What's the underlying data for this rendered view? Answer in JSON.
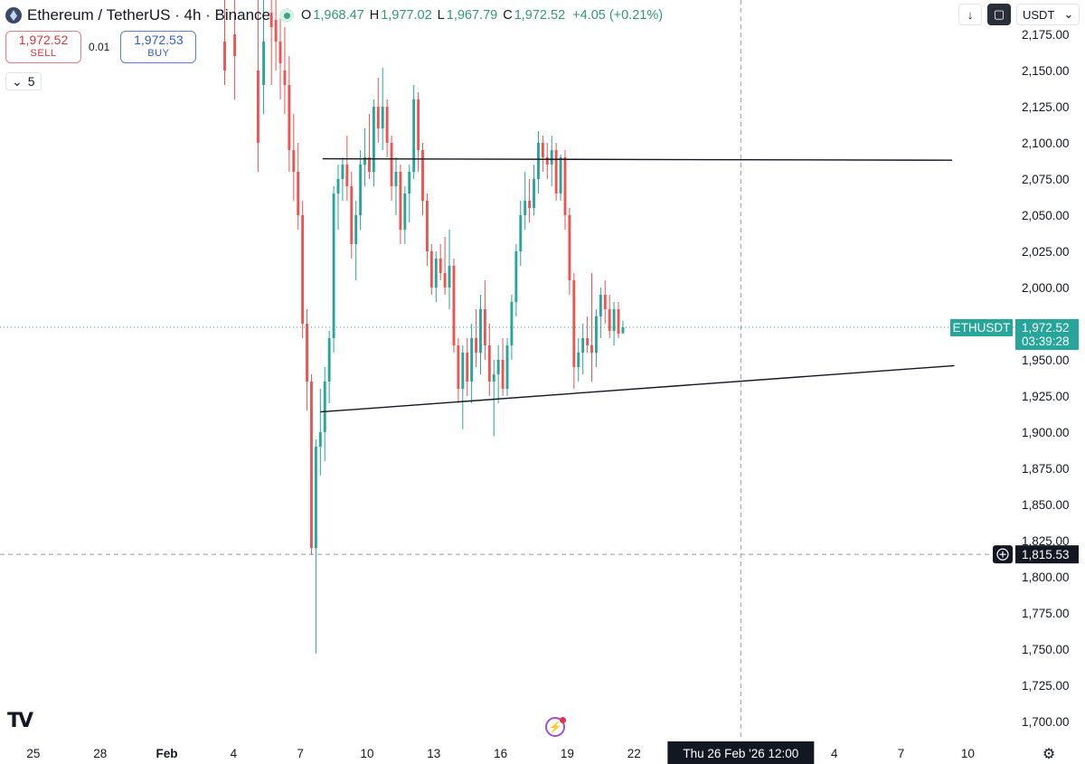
{
  "header": {
    "symbol": "Ethereum / TetherUS · 4h · Binance",
    "ohlc": [
      {
        "key": "O",
        "value": "1,968.47"
      },
      {
        "key": "H",
        "value": "1,977.02"
      },
      {
        "key": "L",
        "value": "1,967.79"
      },
      {
        "key": "C",
        "value": "1,972.52"
      }
    ],
    "change": "+4.05 (+0.21%)"
  },
  "trade": {
    "sell_price": "1,972.52",
    "sell_label": "SELL",
    "spread": "0.01",
    "buy_price": "1,972.53",
    "buy_label": "BUY"
  },
  "indicator_toggle": {
    "count": "5"
  },
  "toolbar": {
    "currency": "USDT"
  },
  "price_labels": {
    "symbol_tag": "ETHUSDT",
    "current_price": "1,972.52",
    "countdown": "03:39:28",
    "crosshair_price": "1,815.53",
    "crosshair_time": "Thu 26 Feb '26   12:00"
  },
  "colors": {
    "up": "#26a69a",
    "down": "#ef5350",
    "axis_text": "#131722",
    "price_tag": "#26a69a",
    "dark_tag": "#131722"
  },
  "icons": {
    "logo": "eth-logo",
    "status": "market-open-dot",
    "download": "download-icon",
    "fullscreen": "fullscreen-icon",
    "collapse": "chevron-down-icon",
    "brand": "tradingview-logo",
    "alert": "lightning-icon",
    "crosshair_add": "plus-circle-icon",
    "settings": "gear-icon"
  },
  "chart_data": {
    "type": "candlestick",
    "title": "Ethereum / TetherUS · 4h · Binance",
    "xlabel": "",
    "ylabel": "",
    "ylim": [
      1690,
      2180
    ],
    "y_ticks": [
      "2,175.00",
      "2,150.00",
      "2,125.00",
      "2,100.00",
      "2,075.00",
      "2,050.00",
      "2,025.00",
      "2,000.00",
      "1,975.00",
      "1,950.00",
      "1,925.00",
      "1,900.00",
      "1,875.00",
      "1,850.00",
      "1,825.00",
      "1,800.00",
      "1,775.00",
      "1,750.00",
      "1,725.00",
      "1,700.00"
    ],
    "x_ticks": [
      "25",
      "28",
      "Feb",
      "4",
      "7",
      "10",
      "13",
      "16",
      "19",
      "22",
      "4",
      "7",
      "10"
    ],
    "x_range_days": [
      -7.8,
      37.8
    ],
    "candle_period_days": 0.1666667,
    "candles": [
      {
        "t": 2.3,
        "o": 2170,
        "h": 2210,
        "l": 2140,
        "c": 2150
      },
      {
        "t": 2.75,
        "o": 2175,
        "h": 2230,
        "l": 2130,
        "c": 2160
      },
      {
        "t": 3.8,
        "o": 2150,
        "h": 2200,
        "l": 2080,
        "c": 2100
      },
      {
        "t": 4.05,
        "o": 2140,
        "h": 2200,
        "l": 2120,
        "c": 2170
      },
      {
        "t": 4.4,
        "o": 2190,
        "h": 2215,
        "l": 2140,
        "c": 2180
      },
      {
        "t": 4.6,
        "o": 2185,
        "h": 2210,
        "l": 2150,
        "c": 2170
      },
      {
        "t": 4.8,
        "o": 2170,
        "h": 2190,
        "l": 2130,
        "c": 2155
      },
      {
        "t": 5.0,
        "o": 2150,
        "h": 2180,
        "l": 2120,
        "c": 2140
      },
      {
        "t": 5.2,
        "o": 2140,
        "h": 2160,
        "l": 2080,
        "c": 2095
      },
      {
        "t": 5.4,
        "o": 2095,
        "h": 2120,
        "l": 2060,
        "c": 2080
      },
      {
        "t": 5.6,
        "o": 2080,
        "h": 2100,
        "l": 2040,
        "c": 2050
      },
      {
        "t": 5.8,
        "o": 2050,
        "h": 2060,
        "l": 1965,
        "c": 1975
      },
      {
        "t": 6.0,
        "o": 1975,
        "h": 1985,
        "l": 1915,
        "c": 1935
      },
      {
        "t": 6.2,
        "o": 1935,
        "h": 1940,
        "l": 1815,
        "c": 1820
      },
      {
        "t": 6.4,
        "o": 1820,
        "h": 1895,
        "l": 1747,
        "c": 1890
      },
      {
        "t": 6.6,
        "o": 1890,
        "h": 1930,
        "l": 1870,
        "c": 1900
      },
      {
        "t": 6.8,
        "o": 1900,
        "h": 1945,
        "l": 1880,
        "c": 1935
      },
      {
        "t": 7.0,
        "o": 1935,
        "h": 1970,
        "l": 1920,
        "c": 1965
      },
      {
        "t": 7.2,
        "o": 1965,
        "h": 2070,
        "l": 1955,
        "c": 2065
      },
      {
        "t": 7.4,
        "o": 2065,
        "h": 2085,
        "l": 2040,
        "c": 2075
      },
      {
        "t": 7.6,
        "o": 2075,
        "h": 2090,
        "l": 2060,
        "c": 2085
      },
      {
        "t": 7.8,
        "o": 2085,
        "h": 2105,
        "l": 2060,
        "c": 2070
      },
      {
        "t": 8.0,
        "o": 2070,
        "h": 2080,
        "l": 2020,
        "c": 2030
      },
      {
        "t": 8.2,
        "o": 2030,
        "h": 2060,
        "l": 2005,
        "c": 2050
      },
      {
        "t": 8.4,
        "o": 2050,
        "h": 2095,
        "l": 2040,
        "c": 2085
      },
      {
        "t": 8.6,
        "o": 2085,
        "h": 2110,
        "l": 2070,
        "c": 2090
      },
      {
        "t": 8.8,
        "o": 2090,
        "h": 2120,
        "l": 2075,
        "c": 2080
      },
      {
        "t": 9.0,
        "o": 2080,
        "h": 2130,
        "l": 2070,
        "c": 2125
      },
      {
        "t": 9.2,
        "o": 2125,
        "h": 2145,
        "l": 2100,
        "c": 2110
      },
      {
        "t": 9.4,
        "o": 2110,
        "h": 2152,
        "l": 2095,
        "c": 2125
      },
      {
        "t": 9.6,
        "o": 2125,
        "h": 2130,
        "l": 2090,
        "c": 2100
      },
      {
        "t": 9.8,
        "o": 2100,
        "h": 2105,
        "l": 2060,
        "c": 2070
      },
      {
        "t": 10.0,
        "o": 2070,
        "h": 2090,
        "l": 2050,
        "c": 2080
      },
      {
        "t": 10.2,
        "o": 2080,
        "h": 2085,
        "l": 2030,
        "c": 2040
      },
      {
        "t": 10.4,
        "o": 2040,
        "h": 2070,
        "l": 2030,
        "c": 2065
      },
      {
        "t": 10.6,
        "o": 2065,
        "h": 2085,
        "l": 2045,
        "c": 2080
      },
      {
        "t": 10.8,
        "o": 2080,
        "h": 2140,
        "l": 2075,
        "c": 2130
      },
      {
        "t": 11.0,
        "o": 2130,
        "h": 2135,
        "l": 2080,
        "c": 2095
      },
      {
        "t": 11.2,
        "o": 2095,
        "h": 2100,
        "l": 2050,
        "c": 2060
      },
      {
        "t": 11.4,
        "o": 2060,
        "h": 2065,
        "l": 2015,
        "c": 2025
      },
      {
        "t": 11.6,
        "o": 2025,
        "h": 2030,
        "l": 1995,
        "c": 2000
      },
      {
        "t": 11.8,
        "o": 2000,
        "h": 2025,
        "l": 1990,
        "c": 2020
      },
      {
        "t": 12.0,
        "o": 2020,
        "h": 2030,
        "l": 2005,
        "c": 2010
      },
      {
        "t": 12.2,
        "o": 2010,
        "h": 2035,
        "l": 1995,
        "c": 2000
      },
      {
        "t": 12.4,
        "o": 2000,
        "h": 2040,
        "l": 1985,
        "c": 2015
      },
      {
        "t": 12.6,
        "o": 2015,
        "h": 2020,
        "l": 1955,
        "c": 1960
      },
      {
        "t": 12.8,
        "o": 1960,
        "h": 1965,
        "l": 1920,
        "c": 1930
      },
      {
        "t": 13.0,
        "o": 1930,
        "h": 1960,
        "l": 1902,
        "c": 1955
      },
      {
        "t": 13.2,
        "o": 1955,
        "h": 1965,
        "l": 1925,
        "c": 1935
      },
      {
        "t": 13.4,
        "o": 1935,
        "h": 1975,
        "l": 1920,
        "c": 1965
      },
      {
        "t": 13.6,
        "o": 1965,
        "h": 1985,
        "l": 1945,
        "c": 1955
      },
      {
        "t": 13.8,
        "o": 1955,
        "h": 1995,
        "l": 1940,
        "c": 1985
      },
      {
        "t": 14.0,
        "o": 1985,
        "h": 2005,
        "l": 1950,
        "c": 1960
      },
      {
        "t": 14.2,
        "o": 1960,
        "h": 1975,
        "l": 1925,
        "c": 1935
      },
      {
        "t": 14.4,
        "o": 1935,
        "h": 1950,
        "l": 1897,
        "c": 1940
      },
      {
        "t": 14.6,
        "o": 1940,
        "h": 1960,
        "l": 1920,
        "c": 1950
      },
      {
        "t": 14.8,
        "o": 1950,
        "h": 1965,
        "l": 1925,
        "c": 1930
      },
      {
        "t": 15.0,
        "o": 1930,
        "h": 1965,
        "l": 1925,
        "c": 1960
      },
      {
        "t": 15.2,
        "o": 1960,
        "h": 1995,
        "l": 1950,
        "c": 1990
      },
      {
        "t": 15.4,
        "o": 1990,
        "h": 2030,
        "l": 1980,
        "c": 2025
      },
      {
        "t": 15.6,
        "o": 2025,
        "h": 2060,
        "l": 2015,
        "c": 2050
      },
      {
        "t": 15.8,
        "o": 2050,
        "h": 2080,
        "l": 2040,
        "c": 2060
      },
      {
        "t": 16.0,
        "o": 2060,
        "h": 2075,
        "l": 2045,
        "c": 2055
      },
      {
        "t": 16.2,
        "o": 2055,
        "h": 2085,
        "l": 2050,
        "c": 2075
      },
      {
        "t": 16.4,
        "o": 2075,
        "h": 2108,
        "l": 2065,
        "c": 2100
      },
      {
        "t": 16.6,
        "o": 2100,
        "h": 2105,
        "l": 2080,
        "c": 2090
      },
      {
        "t": 16.8,
        "o": 2090,
        "h": 2100,
        "l": 2075,
        "c": 2085
      },
      {
        "t": 17.0,
        "o": 2085,
        "h": 2105,
        "l": 2070,
        "c": 2095
      },
      {
        "t": 17.2,
        "o": 2095,
        "h": 2100,
        "l": 2060,
        "c": 2065
      },
      {
        "t": 17.4,
        "o": 2065,
        "h": 2092,
        "l": 2060,
        "c": 2090
      },
      {
        "t": 17.6,
        "o": 2090,
        "h": 2095,
        "l": 2040,
        "c": 2050
      },
      {
        "t": 17.8,
        "o": 2050,
        "h": 2055,
        "l": 1995,
        "c": 2005
      },
      {
        "t": 18.0,
        "o": 2005,
        "h": 2010,
        "l": 1930,
        "c": 1945
      },
      {
        "t": 18.2,
        "o": 1945,
        "h": 1965,
        "l": 1935,
        "c": 1955
      },
      {
        "t": 18.4,
        "o": 1955,
        "h": 1975,
        "l": 1940,
        "c": 1965
      },
      {
        "t": 18.6,
        "o": 1965,
        "h": 1980,
        "l": 1955,
        "c": 1960
      },
      {
        "t": 18.8,
        "o": 1960,
        "h": 2010,
        "l": 1935,
        "c": 1955
      },
      {
        "t": 19.0,
        "o": 1955,
        "h": 1985,
        "l": 1945,
        "c": 1980
      },
      {
        "t": 19.2,
        "o": 1980,
        "h": 2000,
        "l": 1965,
        "c": 1995
      },
      {
        "t": 19.4,
        "o": 1995,
        "h": 2005,
        "l": 1975,
        "c": 1985
      },
      {
        "t": 19.6,
        "o": 1985,
        "h": 1995,
        "l": 1965,
        "c": 1970
      },
      {
        "t": 19.8,
        "o": 1970,
        "h": 1990,
        "l": 1960,
        "c": 1985
      },
      {
        "t": 20.0,
        "o": 1985,
        "h": 1990,
        "l": 1965,
        "c": 1968
      },
      {
        "t": 20.2,
        "o": 1968.47,
        "h": 1977.02,
        "l": 1967.79,
        "c": 1972.52
      }
    ],
    "trendlines": [
      {
        "t1": 6.7,
        "p1": 2089,
        "t2": 35.0,
        "p2": 2088
      },
      {
        "t1": 6.6,
        "p1": 1914,
        "t2": 35.1,
        "p2": 1946
      }
    ],
    "last_price": 1972.52,
    "crosshair": {
      "price": 1815.53,
      "t": 25.5
    }
  }
}
